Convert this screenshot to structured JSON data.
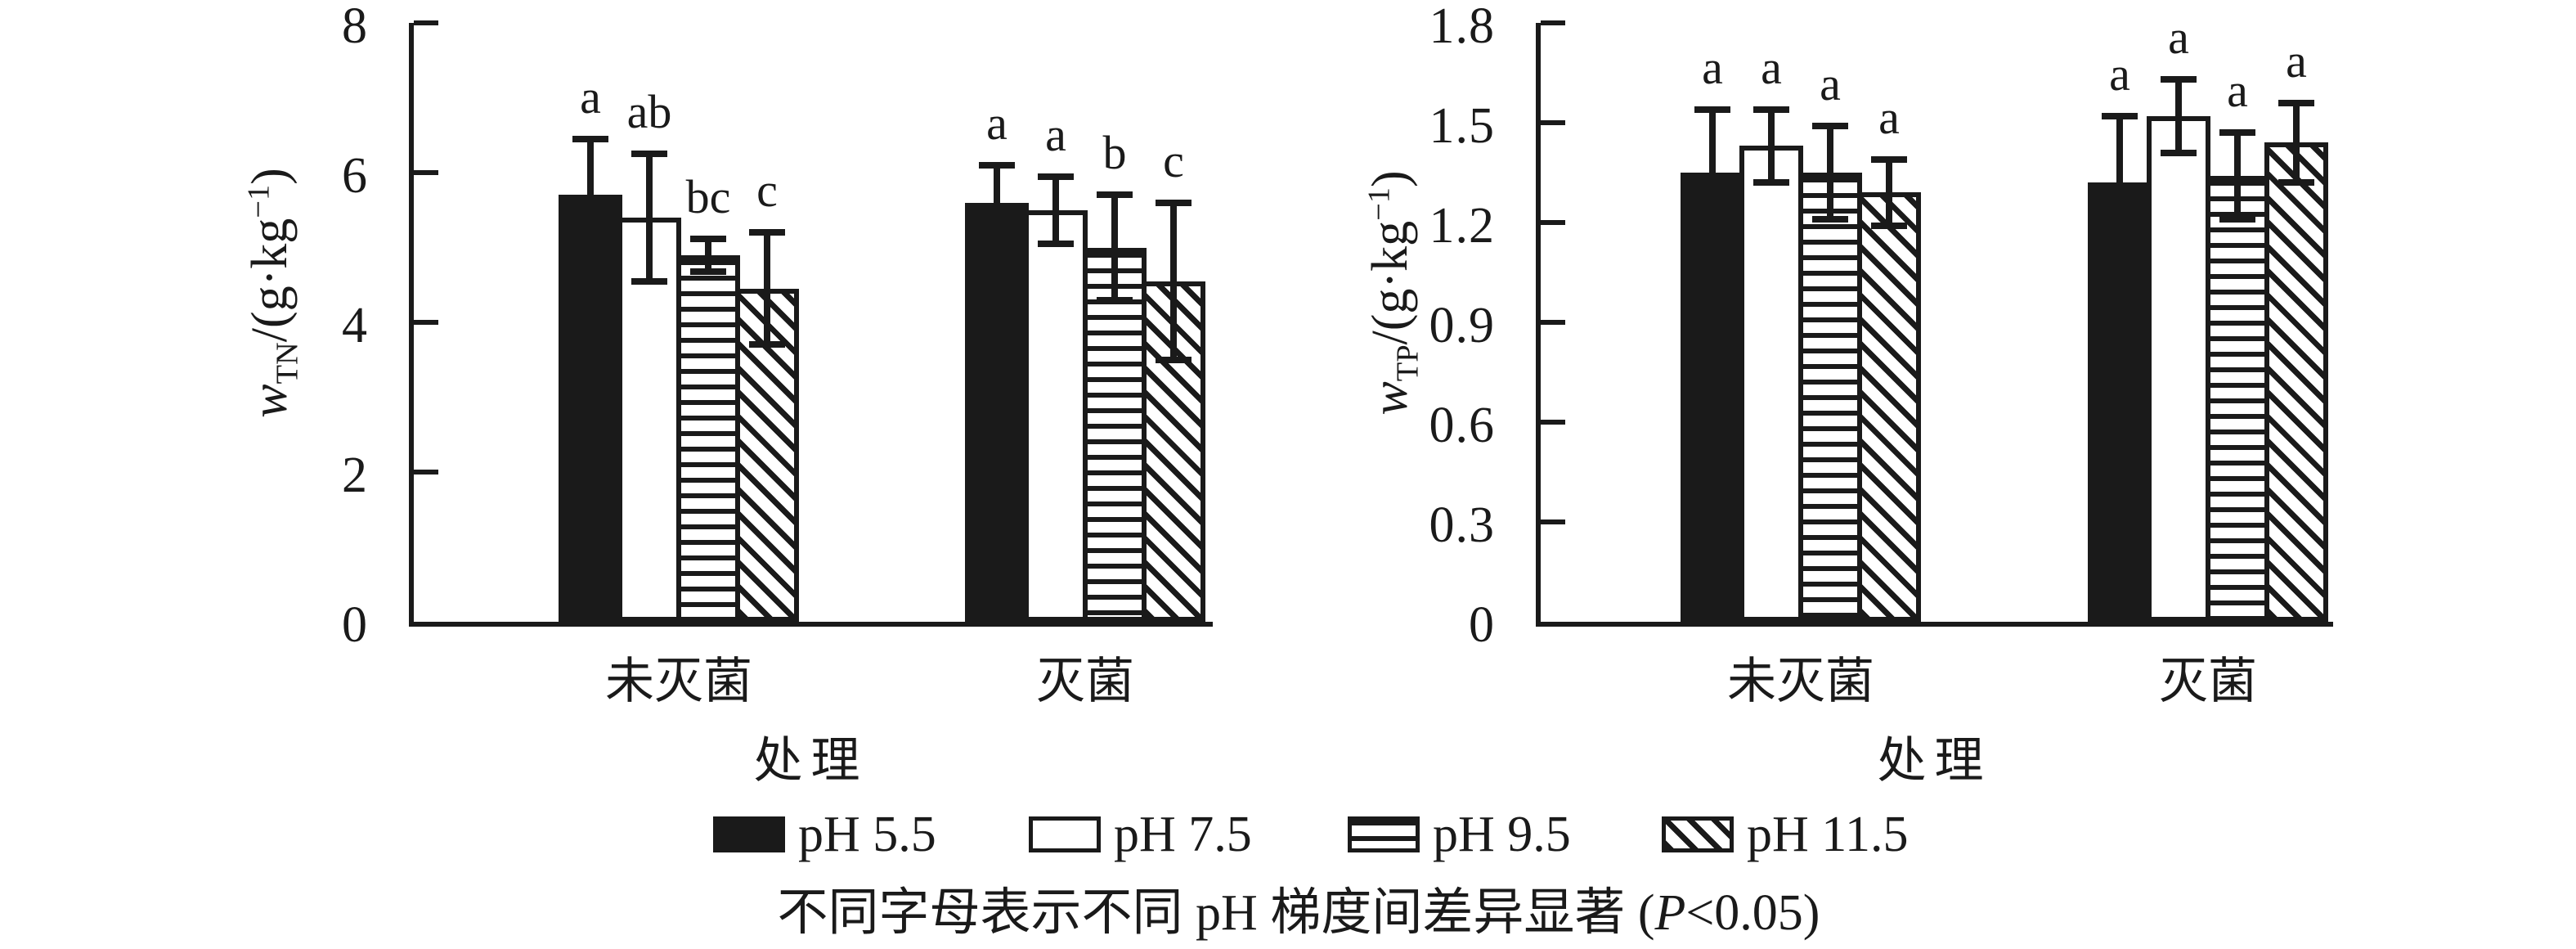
{
  "colors": {
    "ink": "#1a1a1a",
    "background": "#ffffff"
  },
  "caption": {
    "pre": "不同字母表示不同 pH 梯度间差异显著 (",
    "italic_var": "P",
    "post": "<0.05)"
  },
  "legend": {
    "items": [
      {
        "label": "pH 5.5",
        "pattern": "solid"
      },
      {
        "label": "pH 7.5",
        "pattern": "open"
      },
      {
        "label": "pH 9.5",
        "pattern": "hstripe"
      },
      {
        "label": "pH 11.5",
        "pattern": "dstripe"
      }
    ]
  },
  "chart_data": [
    {
      "type": "bar",
      "panel": "TN",
      "ylabel": {
        "var": "w",
        "sub": "TN",
        "mid": "/(g·kg",
        "sup": "−1",
        "end": ")"
      },
      "ylim": [
        0,
        8
      ],
      "yticks": {
        "values": [
          0,
          2,
          4,
          6,
          8
        ],
        "labels": [
          "0",
          "2",
          "4",
          "6",
          "8"
        ]
      },
      "categories": [
        "未灭菌",
        "灭菌"
      ],
      "category_keys": [
        "unsterilized",
        "sterilized"
      ],
      "xlabel": "处理",
      "grid": false,
      "legend_position": "shared-bottom",
      "series": [
        {
          "name": "pH 5.5",
          "pattern": "solid",
          "values": [
            5.7,
            5.6
          ],
          "errors": [
            0.75,
            0.5
          ],
          "letters": [
            "a",
            "a"
          ]
        },
        {
          "name": "pH 7.5",
          "pattern": "open",
          "values": [
            5.4,
            5.5
          ],
          "errors": [
            0.85,
            0.45
          ],
          "letters": [
            "ab",
            "a"
          ]
        },
        {
          "name": "pH 9.5",
          "pattern": "hstripe",
          "values": [
            4.9,
            5.0
          ],
          "errors": [
            0.22,
            0.7
          ],
          "letters": [
            "bc",
            "b"
          ]
        },
        {
          "name": "pH 11.5",
          "pattern": "dstripe",
          "values": [
            4.45,
            4.55
          ],
          "errors": [
            0.75,
            1.05
          ],
          "letters": [
            "c",
            "c"
          ]
        }
      ]
    },
    {
      "type": "bar",
      "panel": "TP",
      "ylabel": {
        "var": "w",
        "sub": "TP",
        "mid": "/(g·kg",
        "sup": "−1",
        "end": ")"
      },
      "ylim": [
        0,
        1.8
      ],
      "yticks": {
        "values": [
          0,
          0.3,
          0.6,
          0.9,
          1.2,
          1.5,
          1.8
        ],
        "labels": [
          "0",
          "0.3",
          "0.6",
          "0.9",
          "1.2",
          "1.5",
          "1.8"
        ]
      },
      "categories": [
        "未灭菌",
        "灭菌"
      ],
      "category_keys": [
        "unsterilized",
        "sterilized"
      ],
      "xlabel": "处理",
      "grid": false,
      "legend_position": "shared-bottom",
      "series": [
        {
          "name": "pH 5.5",
          "pattern": "solid",
          "values": [
            1.35,
            1.32
          ],
          "errors": [
            0.19,
            0.2
          ],
          "letters": [
            "a",
            "a"
          ]
        },
        {
          "name": "pH 7.5",
          "pattern": "open",
          "values": [
            1.43,
            1.52
          ],
          "errors": [
            0.11,
            0.11
          ],
          "letters": [
            "a",
            "a"
          ]
        },
        {
          "name": "pH 9.5",
          "pattern": "hstripe",
          "values": [
            1.35,
            1.34
          ],
          "errors": [
            0.14,
            0.13
          ],
          "letters": [
            "a",
            "a"
          ]
        },
        {
          "name": "pH 11.5",
          "pattern": "dstripe",
          "values": [
            1.29,
            1.44
          ],
          "errors": [
            0.1,
            0.12
          ],
          "letters": [
            "a",
            "a"
          ]
        }
      ]
    }
  ]
}
